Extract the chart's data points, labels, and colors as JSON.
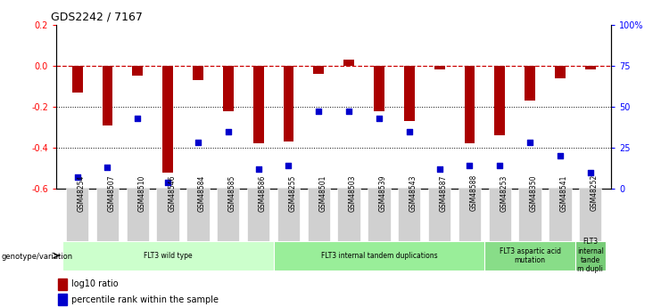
{
  "title": "GDS2242 / 7167",
  "samples": [
    "GSM48254",
    "GSM48507",
    "GSM48510",
    "GSM48546",
    "GSM48584",
    "GSM48585",
    "GSM48586",
    "GSM48255",
    "GSM48501",
    "GSM48503",
    "GSM48539",
    "GSM48543",
    "GSM48587",
    "GSM48588",
    "GSM48253",
    "GSM48350",
    "GSM48541",
    "GSM48252"
  ],
  "log10_ratio": [
    -0.13,
    -0.29,
    -0.05,
    -0.52,
    -0.07,
    -0.22,
    -0.38,
    -0.37,
    -0.04,
    0.03,
    -0.22,
    -0.27,
    -0.02,
    -0.38,
    -0.34,
    -0.17,
    -0.06,
    -0.02
  ],
  "percentile_rank": [
    7,
    13,
    43,
    4,
    28,
    35,
    12,
    14,
    47,
    47,
    43,
    35,
    12,
    14,
    14,
    28,
    20,
    10
  ],
  "groups": [
    {
      "label": "FLT3 wild type",
      "start": 0,
      "end": 6,
      "color": "#ccffcc"
    },
    {
      "label": "FLT3 internal tandem duplications",
      "start": 7,
      "end": 13,
      "color": "#99ee99"
    },
    {
      "label": "FLT3 aspartic acid\nmutation",
      "start": 14,
      "end": 16,
      "color": "#88dd88"
    },
    {
      "label": "FLT3\ninternal\ntande\nm dupli",
      "start": 17,
      "end": 17,
      "color": "#77cc77"
    }
  ],
  "ylim_left": [
    -0.6,
    0.2
  ],
  "ylim_right": [
    0,
    100
  ],
  "yticks_left": [
    -0.6,
    -0.4,
    -0.2,
    0.0,
    0.2
  ],
  "yticks_right": [
    0,
    25,
    50,
    75,
    100
  ],
  "bar_color": "#aa0000",
  "scatter_color": "#0000cc",
  "ref_line_color": "#cc0000",
  "grid_color": "#000000"
}
